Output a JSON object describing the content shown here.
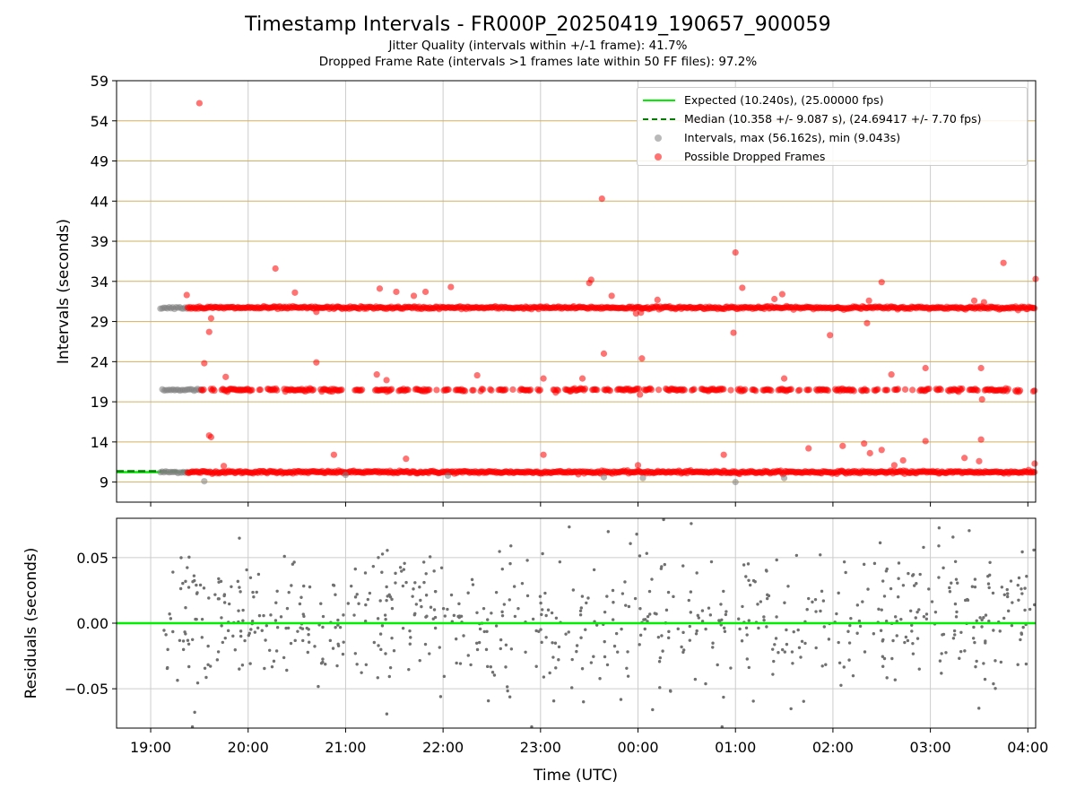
{
  "title": "Timestamp Intervals - FR000P_20250419_190657_900059",
  "subtitle_jitter": "Jitter Quality (intervals within +/-1 frame): 41.7%",
  "subtitle_dropped": "Dropped Frame Rate (intervals >1 frames late within 50 FF files): 97.2%",
  "legend": {
    "expected": "Expected (10.240s), (25.00000 fps)",
    "median": "Median (10.358 +/- 9.087 s), (24.69417 +/- 7.70 fps)",
    "intervals": "Intervals, max (56.162s), min (9.043s)",
    "dropped": "Possible Dropped Frames"
  },
  "colors": {
    "expected": "#00ee00",
    "median": "#008000",
    "intervals": "#808080",
    "dropped": "#ff0000",
    "hgrid": "#d2b060",
    "vgrid": "#cccccc"
  },
  "chart_data": [
    {
      "type": "scatter",
      "ylabel": "Intervals (seconds)",
      "ylim": [
        6.5,
        59
      ],
      "yticks": [
        "9",
        "14",
        "19",
        "24",
        "29",
        "34",
        "39",
        "44",
        "49",
        "54",
        "59"
      ],
      "xlim_hours": [
        18.65,
        28.08
      ],
      "x_ticks_hours": [
        19,
        20,
        21,
        22,
        23,
        24,
        25,
        26,
        27,
        28
      ],
      "x_tick_labels": [
        "19:00",
        "20:00",
        "21:00",
        "22:00",
        "23:00",
        "00:00",
        "01:00",
        "02:00",
        "03:00",
        "04:00"
      ],
      "expected_interval": 10.24,
      "median_interval": 10.358,
      "median_line_range_hours": [
        18.65,
        19.45
      ],
      "bands": [
        {
          "y": 10.24,
          "gray_start": 19.1,
          "red_start": 19.38,
          "end": 28.08
        },
        {
          "y": 20.48,
          "gray_start": 19.12,
          "red_start": 19.52,
          "end": 28.08
        },
        {
          "y": 30.72,
          "gray_start": 19.1,
          "red_start": 19.38,
          "end": 28.08
        }
      ],
      "gray_outliers": [
        [
          19.55,
          9.1
        ],
        [
          21.0,
          9.9
        ],
        [
          24.05,
          9.5
        ],
        [
          25.0,
          9.0
        ],
        [
          25.5,
          9.5
        ],
        [
          23.65,
          9.6
        ],
        [
          22.05,
          9.8
        ]
      ],
      "red_outliers": [
        [
          19.5,
          56.2
        ],
        [
          23.63,
          44.3
        ],
        [
          25.0,
          37.6
        ],
        [
          20.28,
          35.6
        ],
        [
          27.75,
          36.3
        ],
        [
          28.08,
          34.3
        ],
        [
          19.37,
          32.3
        ],
        [
          20.48,
          32.6
        ],
        [
          21.35,
          33.1
        ],
        [
          21.52,
          32.7
        ],
        [
          21.7,
          32.2
        ],
        [
          21.82,
          32.7
        ],
        [
          22.08,
          33.3
        ],
        [
          23.5,
          33.8
        ],
        [
          23.52,
          34.2
        ],
        [
          23.73,
          32.2
        ],
        [
          24.2,
          31.7
        ],
        [
          25.07,
          33.2
        ],
        [
          25.4,
          31.8
        ],
        [
          25.48,
          32.4
        ],
        [
          26.37,
          31.6
        ],
        [
          26.5,
          33.9
        ],
        [
          27.45,
          31.6
        ],
        [
          27.55,
          31.4
        ],
        [
          19.62,
          29.4
        ],
        [
          19.6,
          27.7
        ],
        [
          20.7,
          30.2
        ],
        [
          23.98,
          30.0
        ],
        [
          24.03,
          30.1
        ],
        [
          24.98,
          27.6
        ],
        [
          25.97,
          27.3
        ],
        [
          26.35,
          28.8
        ],
        [
          19.55,
          23.8
        ],
        [
          19.77,
          22.1
        ],
        [
          20.7,
          23.9
        ],
        [
          21.32,
          22.4
        ],
        [
          21.42,
          21.7
        ],
        [
          22.35,
          22.3
        ],
        [
          23.03,
          21.9
        ],
        [
          23.43,
          21.9
        ],
        [
          23.65,
          25.0
        ],
        [
          24.04,
          24.4
        ],
        [
          24.01,
          20.6
        ],
        [
          24.02,
          19.9
        ],
        [
          25.5,
          21.9
        ],
        [
          26.6,
          22.4
        ],
        [
          26.95,
          23.2
        ],
        [
          27.52,
          23.2
        ],
        [
          27.53,
          19.3
        ],
        [
          19.6,
          14.8
        ],
        [
          19.62,
          14.6
        ],
        [
          19.75,
          11.0
        ],
        [
          20.88,
          12.4
        ],
        [
          21.62,
          11.9
        ],
        [
          23.03,
          12.4
        ],
        [
          24.0,
          11.1
        ],
        [
          24.88,
          12.4
        ],
        [
          25.75,
          13.2
        ],
        [
          26.1,
          13.5
        ],
        [
          26.32,
          13.8
        ],
        [
          26.38,
          12.6
        ],
        [
          26.5,
          13.0
        ],
        [
          26.63,
          11.1
        ],
        [
          26.72,
          11.7
        ],
        [
          26.95,
          14.1
        ],
        [
          27.35,
          12.0
        ],
        [
          27.5,
          11.6
        ],
        [
          27.52,
          14.3
        ],
        [
          28.07,
          11.3
        ]
      ]
    },
    {
      "type": "scatter",
      "ylabel": "Residuals (seconds)",
      "xlabel": "Time (UTC)",
      "ylim": [
        -0.08,
        0.08
      ],
      "yticks": [
        -0.05,
        0.0,
        0.05
      ],
      "ytick_labels": [
        "−0.05",
        "0.00",
        "0.05"
      ],
      "xlim_hours": [
        18.65,
        28.08
      ],
      "zero_line": 0.0,
      "residual_sd": 0.028,
      "n_points": 720
    }
  ]
}
